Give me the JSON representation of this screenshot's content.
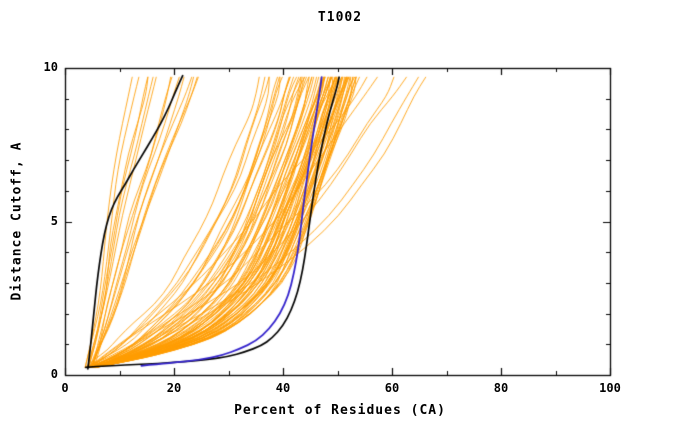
{
  "chart_data": {
    "type": "line",
    "title": "T1002",
    "xlabel": "Percent of Residues (CA)",
    "ylabel": "Distance Cutoff, A",
    "xlim": [
      0,
      100
    ],
    "ylim": [
      0,
      10
    ],
    "x_major_ticks": [
      0,
      20,
      40,
      60,
      80,
      100
    ],
    "x_minor_ticks": [
      10,
      30,
      50,
      70,
      90
    ],
    "y_major_ticks": [
      0,
      5,
      10
    ],
    "y_minor_ticks": [
      1,
      2,
      3,
      4,
      6,
      7,
      8,
      9
    ],
    "grid": false,
    "frame": true,
    "legend": "none",
    "colors": {
      "ensemble": "#ff9c00",
      "highlight": "#000000",
      "reference": "#3322cc",
      "axis": "#000000",
      "background": "#ffffff"
    },
    "series": [
      {
        "name": "highlight-model-left",
        "color": "#000000",
        "width": 1.7,
        "points": [
          [
            4.2,
            0.2
          ],
          [
            4.6,
            0.8
          ],
          [
            5.0,
            1.5
          ],
          [
            5.4,
            2.2
          ],
          [
            5.8,
            2.9
          ],
          [
            6.3,
            3.6
          ],
          [
            6.9,
            4.3
          ],
          [
            7.6,
            4.9
          ],
          [
            8.5,
            5.4
          ],
          [
            9.6,
            5.8
          ],
          [
            11,
            6.2
          ],
          [
            12.6,
            6.7
          ],
          [
            14.3,
            7.2
          ],
          [
            16,
            7.7
          ],
          [
            17.6,
            8.2
          ],
          [
            19,
            8.7
          ],
          [
            20.2,
            9.2
          ],
          [
            21.2,
            9.6
          ],
          [
            21.6,
            9.75
          ]
        ]
      },
      {
        "name": "highlight-model-main",
        "color": "#000000",
        "width": 1.7,
        "points": [
          [
            3.8,
            0.25
          ],
          [
            8,
            0.3
          ],
          [
            14,
            0.35
          ],
          [
            20,
            0.4
          ],
          [
            26,
            0.5
          ],
          [
            30,
            0.6
          ],
          [
            33,
            0.75
          ],
          [
            36,
            0.95
          ],
          [
            38,
            1.2
          ],
          [
            40,
            1.6
          ],
          [
            41.5,
            2.1
          ],
          [
            42.7,
            2.7
          ],
          [
            43.6,
            3.4
          ],
          [
            44.3,
            4.2
          ],
          [
            44.9,
            5.0
          ],
          [
            45.6,
            5.9
          ],
          [
            46.4,
            6.8
          ],
          [
            47.4,
            7.7
          ],
          [
            48.6,
            8.6
          ],
          [
            49.8,
            9.3
          ],
          [
            50.3,
            9.7
          ]
        ]
      },
      {
        "name": "reference-model-blue",
        "color": "#3322cc",
        "width": 1.8,
        "points": [
          [
            14,
            0.3
          ],
          [
            20,
            0.4
          ],
          [
            25,
            0.5
          ],
          [
            29,
            0.65
          ],
          [
            32,
            0.85
          ],
          [
            35,
            1.1
          ],
          [
            37.5,
            1.5
          ],
          [
            39.5,
            2.0
          ],
          [
            41,
            2.6
          ],
          [
            42,
            3.3
          ],
          [
            42.8,
            4.1
          ],
          [
            43.4,
            5.0
          ],
          [
            44.0,
            5.9
          ],
          [
            44.7,
            6.8
          ],
          [
            45.4,
            7.7
          ],
          [
            46.2,
            8.6
          ],
          [
            46.8,
            9.3
          ],
          [
            47.1,
            9.7
          ]
        ]
      }
    ],
    "ensembles": [
      {
        "name": "left-outlier-group",
        "color": "#ff9c00",
        "count": 14,
        "seed": 5,
        "skew": 0.8,
        "jitter": 0.7,
        "y_levels": [
          0.25,
          0.8,
          1.5,
          2.3,
          3.2,
          4.2,
          5.2,
          6.2,
          7.2,
          8.2,
          9.1,
          9.7
        ],
        "x_min": [
          3.8,
          4.4,
          4.9,
          5.4,
          5.9,
          6.4,
          7.0,
          7.7,
          8.5,
          9.3,
          10.0,
          10.5
        ],
        "x_max": [
          5.2,
          6.5,
          8.2,
          10.0,
          11.8,
          13.6,
          15.5,
          17.8,
          20.2,
          22.6,
          24.8,
          26.0
        ]
      },
      {
        "name": "main-cluster",
        "color": "#ff9c00",
        "count": 72,
        "seed": 11,
        "skew": 0.42,
        "jitter": 1.1,
        "y_levels": [
          0.25,
          0.5,
          0.8,
          1.2,
          1.7,
          2.3,
          3.0,
          3.8,
          4.7,
          5.6,
          6.5,
          7.5,
          8.5,
          9.2,
          9.7
        ],
        "x_min": [
          3.8,
          4.8,
          6.0,
          7.5,
          10,
          13,
          16,
          19,
          22,
          24.5,
          27,
          29,
          31,
          32.3,
          33
        ],
        "x_max": [
          5.5,
          13,
          20,
          27,
          32,
          36,
          39.5,
          42,
          44,
          45.8,
          47.5,
          49.5,
          51.3,
          52.6,
          53.5
        ]
      },
      {
        "name": "right-outlier-group",
        "color": "#ff9c00",
        "count": 6,
        "seed": 23,
        "skew": 0.9,
        "jitter": 1.6,
        "y_levels": [
          0.25,
          0.8,
          1.5,
          2.3,
          3.2,
          4.2,
          5.2,
          6.2,
          7.2,
          8.2,
          9.1,
          9.7
        ],
        "x_min": [
          4.2,
          8,
          13,
          19,
          25,
          30,
          35,
          39,
          44,
          49,
          53,
          55
        ],
        "x_max": [
          5.8,
          13,
          21,
          30,
          38,
          45,
          51,
          55,
          58.5,
          61.5,
          64.5,
          66.5
        ]
      }
    ]
  }
}
